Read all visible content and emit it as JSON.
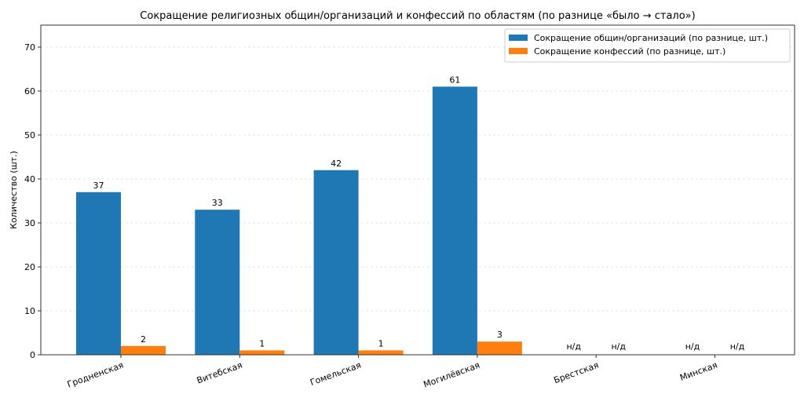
{
  "chart_data": {
    "type": "bar",
    "title": "Сокращение религиозных общин/организаций и конфессий по областям (по разнице «было → стало»)",
    "xlabel": "",
    "ylabel": "Количество (шт.)",
    "ylim": [
      0,
      75
    ],
    "yticks": [
      0,
      10,
      20,
      30,
      40,
      50,
      60,
      70
    ],
    "grid": "y-dashed",
    "legend_position": "top-right",
    "missing_label": "н/д",
    "categories": [
      "Гродненская",
      "Витебская",
      "Гомельская",
      "Могилёвская",
      "Брестская",
      "Минская"
    ],
    "series": [
      {
        "name": "Сокращение общин/организаций (по разнице, шт.)",
        "color": "#1f77b4",
        "values": [
          37,
          33,
          42,
          61,
          null,
          null
        ]
      },
      {
        "name": "Сокращение конфессий (по разнице, шт.)",
        "color": "#ff7f0e",
        "values": [
          2,
          1,
          1,
          3,
          null,
          null
        ]
      }
    ]
  }
}
